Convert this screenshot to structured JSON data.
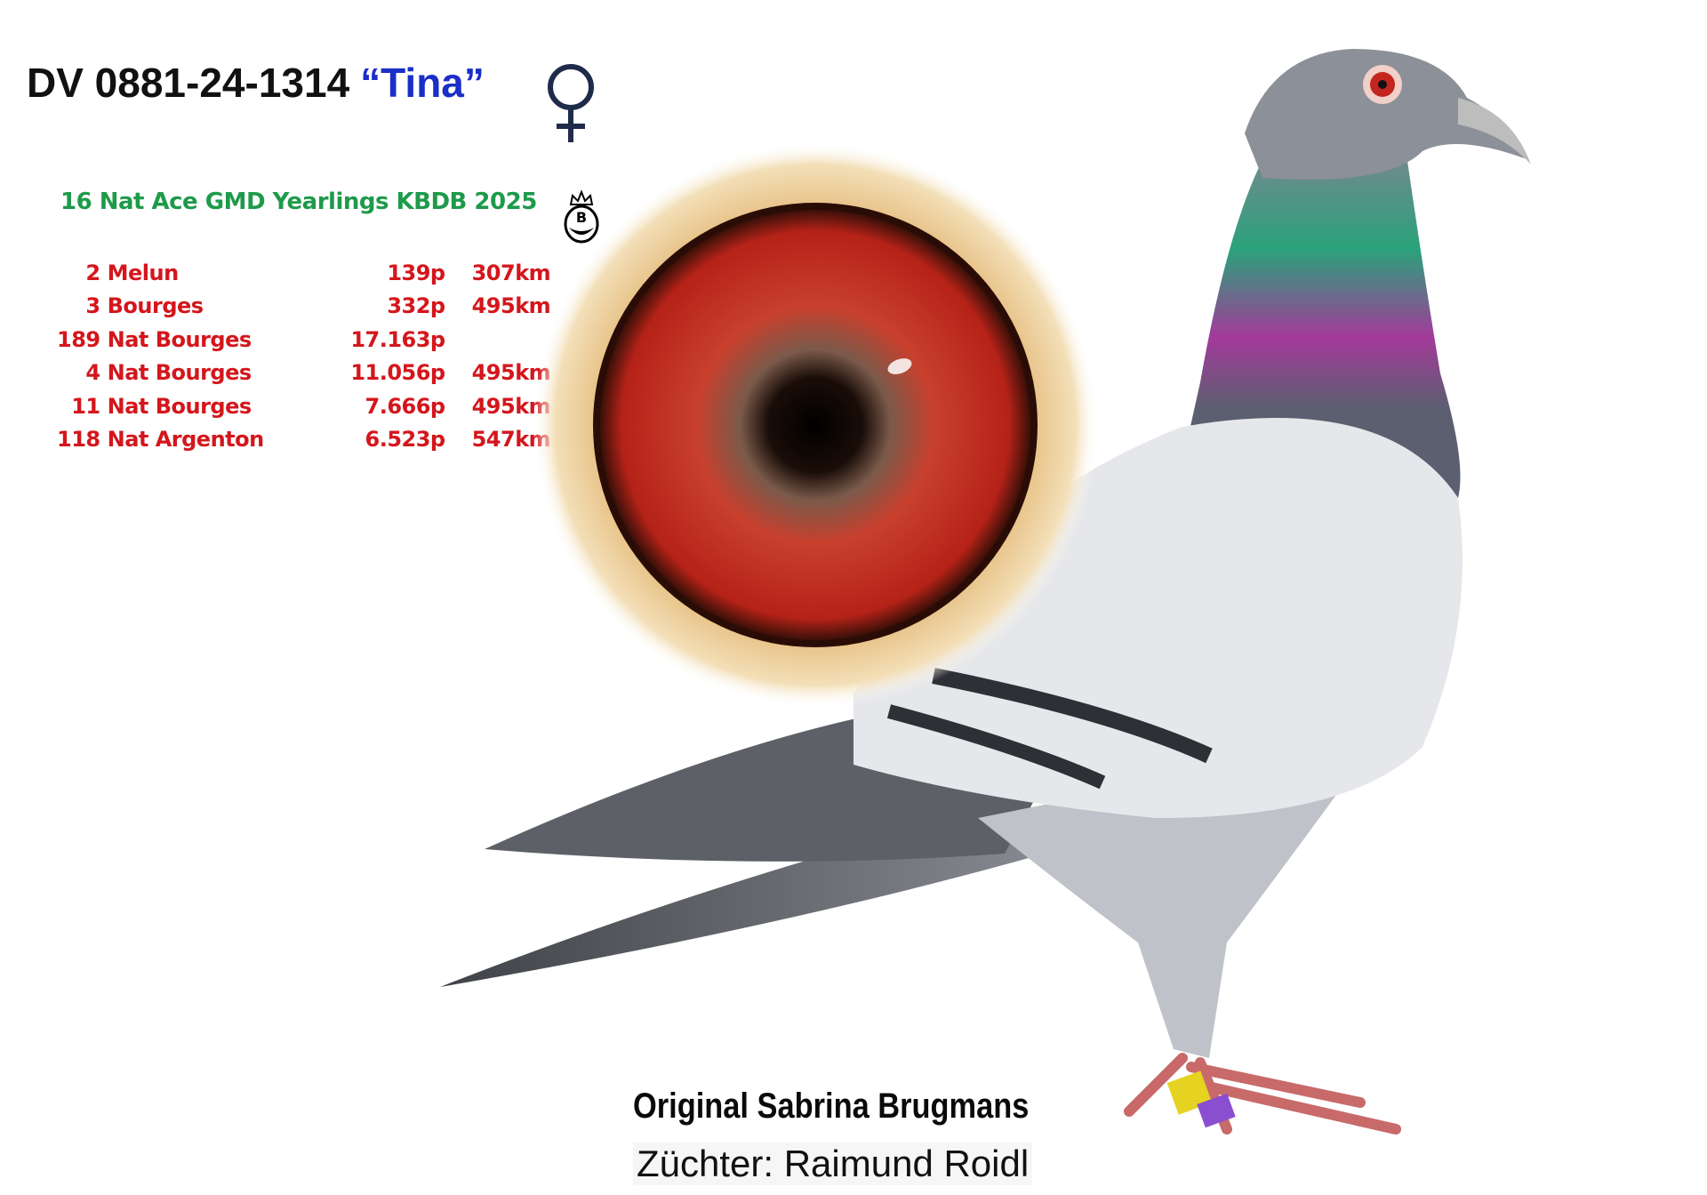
{
  "header": {
    "ring": "DV 0881-24-1314",
    "name": "“Tina”",
    "sex_icon": "female-symbol-icon"
  },
  "achievement": {
    "title": "16 Nat Ace GMD Yearlings KBDB 2025",
    "logo_icon": "kbdb-crown-logo-icon"
  },
  "results": [
    {
      "pos": "2",
      "race": "Melun",
      "pigeons": "139p",
      "distance": "307km"
    },
    {
      "pos": "3",
      "race": "Bourges",
      "pigeons": "332p",
      "distance": "495km"
    },
    {
      "pos": "189",
      "race": "Nat Bourges",
      "pigeons": "17.163p",
      "distance": ""
    },
    {
      "pos": "4",
      "race": "Nat Bourges",
      "pigeons": "11.056p",
      "distance": "495km"
    },
    {
      "pos": "11",
      "race": "Nat Bourges",
      "pigeons": "7.666p",
      "distance": "495km"
    },
    {
      "pos": "118",
      "race": "Nat Argenton",
      "pigeons": "6.523p",
      "distance": "547km"
    }
  ],
  "footer": {
    "origin": "Original Sabrina Brugmans",
    "breeder": "Züchter: Raimund Roidl"
  },
  "colors": {
    "name": "#1a2fc8",
    "achievement": "#1e9a4a",
    "results": "#d4161c"
  }
}
